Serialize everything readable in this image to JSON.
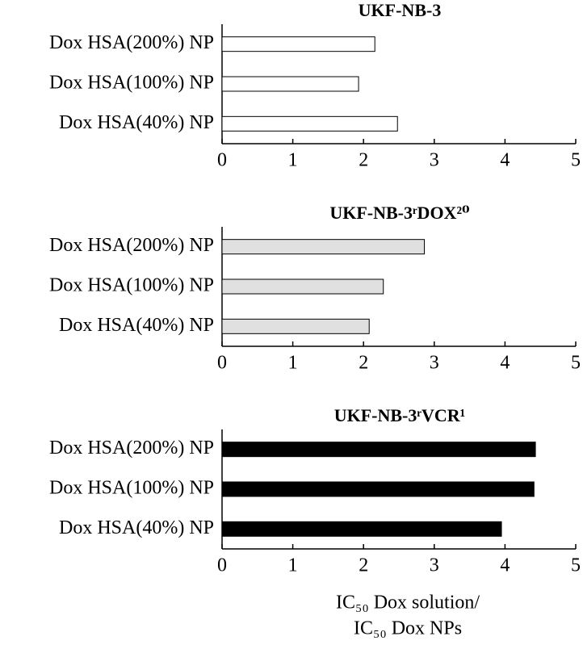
{
  "chart_data": [
    {
      "type": "barh",
      "title": "UKF-NB-3",
      "categories": [
        "Dox HSA(200%) NP",
        "Dox HSA(100%) NP",
        "Dox HSA(40%) NP"
      ],
      "values": [
        2.16,
        1.93,
        2.48
      ],
      "color": "#ffffff",
      "xlim": [
        0,
        5
      ],
      "xticks": [
        0,
        1,
        2,
        3,
        4,
        5
      ]
    },
    {
      "type": "barh",
      "title": "UKF-NB-3ʳDOX²⁰",
      "categories": [
        "Dox HSA(200%) NP",
        "Dox HSA(100%) NP",
        "Dox HSA(40%) NP"
      ],
      "values": [
        2.86,
        2.28,
        2.08
      ],
      "color": "#e0e0e0",
      "xlim": [
        0,
        5
      ],
      "xticks": [
        0,
        1,
        2,
        3,
        4,
        5
      ]
    },
    {
      "type": "barh",
      "title": "UKF-NB-3ʳVCR¹",
      "categories": [
        "Dox HSA(200%) NP",
        "Dox HSA(100%) NP",
        "Dox HSA(40%) NP"
      ],
      "values": [
        4.43,
        4.41,
        3.95
      ],
      "color": "#000000",
      "xlim": [
        0,
        5
      ],
      "xticks": [
        0,
        1,
        2,
        3,
        4,
        5
      ],
      "xlabel": [
        "IC₅₀ Dox solution/",
        "IC₅₀ Dox NPs"
      ]
    }
  ]
}
